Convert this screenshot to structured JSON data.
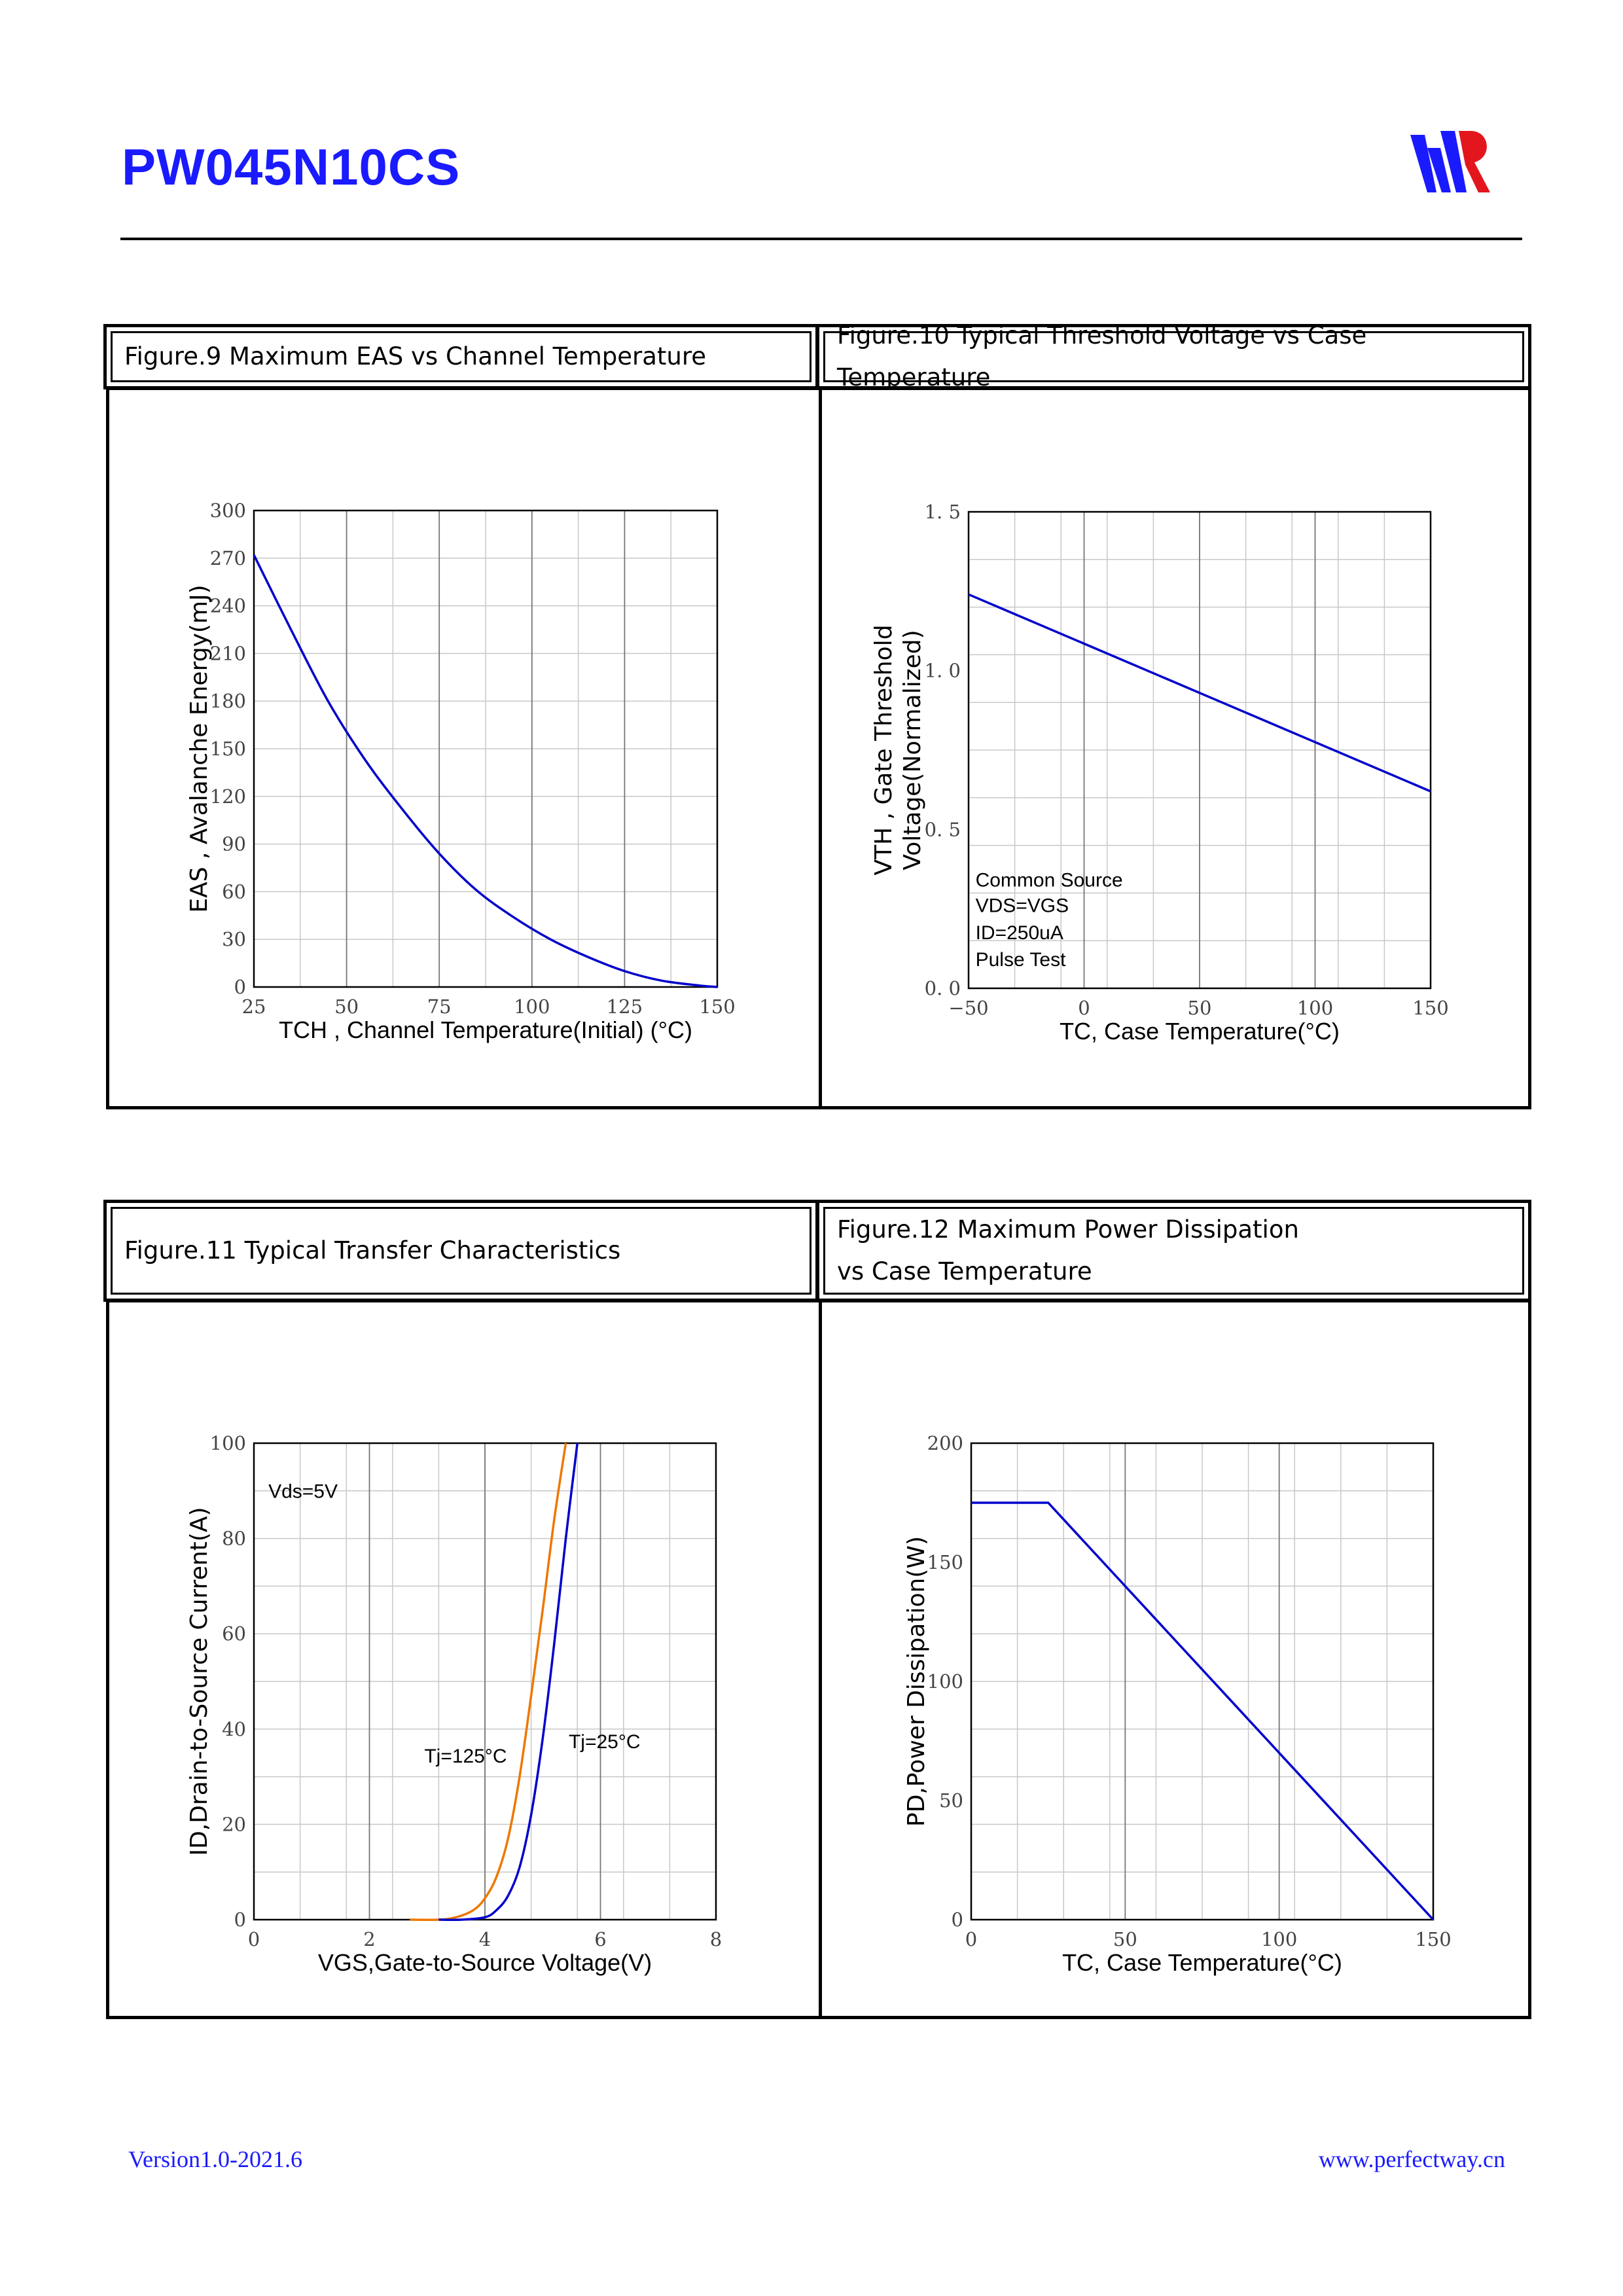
{
  "header": {
    "title": "PW045N10CS"
  },
  "footer": {
    "version": "Version1.0-2021.6",
    "website": "www.perfectway.cn"
  },
  "colors": {
    "blue": "#0000cc",
    "orange": "#ee7700",
    "brand": "#1a1aff"
  },
  "captions": {
    "fig9": "Figure.9 Maximum EAS vs Channel Temperature",
    "fig10": "Figure.10 Typical Threshold Voltage vs Case Temperature",
    "fig11": "Figure.11 Typical Transfer Characteristics",
    "fig12_line1": "Figure.12 Maximum Power Dissipation",
    "fig12_line2": "vs Case Temperature"
  },
  "chart_data": [
    {
      "id": "fig9",
      "type": "line",
      "title": "Figure.9 Maximum EAS vs Channel Temperature",
      "xlabel": "TCH , Channel Temperature(Initial) (°C)",
      "ylabel": "EAS , Avalanche Energy(mJ)",
      "xlim": [
        25,
        150
      ],
      "ylim": [
        0,
        300
      ],
      "xticks": [
        25,
        50,
        75,
        100,
        125,
        150
      ],
      "yticks": [
        0,
        30,
        60,
        90,
        120,
        150,
        180,
        210,
        240,
        270,
        300
      ],
      "series": [
        {
          "name": "EAS",
          "color": "#0000cc",
          "x": [
            25,
            35,
            45,
            55,
            65,
            75,
            85,
            95,
            105,
            115,
            125,
            135,
            145,
            150
          ],
          "y": [
            272,
            225,
            180,
            143,
            112,
            84,
            61,
            44,
            30,
            19,
            10,
            4,
            1,
            0
          ]
        }
      ],
      "annotations": []
    },
    {
      "id": "fig10",
      "type": "line",
      "title": "Figure.10 Typical Threshold Voltage vs Case Temperature",
      "xlabel": "TC, Case Temperature(°C)",
      "ylabel": "VTH , Gate Threshold Voltage(Normalized)",
      "ylabel_lines": [
        "VTH , Gate Threshold",
        "Voltage(Normalized)"
      ],
      "xlim": [
        -50,
        150
      ],
      "ylim": [
        0,
        1.5
      ],
      "xticks": [
        -50,
        0,
        50,
        100,
        150
      ],
      "xtick_labels": [
        "−50",
        "0",
        "50",
        "100",
        "150"
      ],
      "yticks": [
        0,
        0.5,
        1.0,
        1.5
      ],
      "ytick_labels": [
        "0. 0",
        "0. 5",
        "1. 0",
        "1. 5"
      ],
      "series": [
        {
          "name": "VTH",
          "color": "#0000cc",
          "x": [
            -50,
            150
          ],
          "y": [
            1.24,
            0.62
          ]
        }
      ],
      "annotations": [
        {
          "text": "Common Source",
          "x": -47,
          "y": 0.32
        },
        {
          "text": "VDS=VGS",
          "x": -47,
          "y": 0.24
        },
        {
          "text": "ID=250uA",
          "x": -47,
          "y": 0.155
        },
        {
          "text": "Pulse Test",
          "x": -47,
          "y": 0.07
        }
      ]
    },
    {
      "id": "fig11",
      "type": "line",
      "title": "Figure.11 Typical Transfer Characteristics",
      "xlabel": "VGS,Gate-to-Source Voltage(V)",
      "ylabel": "ID,Drain-to-Source Current(A)",
      "xlim": [
        0,
        8
      ],
      "ylim": [
        0,
        100
      ],
      "xticks": [
        0,
        2,
        4,
        6,
        8
      ],
      "yticks": [
        0,
        20,
        40,
        60,
        80,
        100
      ],
      "series": [
        {
          "name": "Tj=125°C",
          "color": "#ee7700",
          "x": [
            2.7,
            3.2,
            3.5,
            3.8,
            4.0,
            4.2,
            4.4,
            4.6,
            4.8,
            5.0,
            5.2,
            5.4
          ],
          "y": [
            0,
            0,
            0.5,
            2,
            4.5,
            9,
            17,
            30,
            47,
            65,
            84,
            100
          ]
        },
        {
          "name": "Tj=25°C",
          "color": "#0000cc",
          "x": [
            3.2,
            3.6,
            4.0,
            4.2,
            4.4,
            4.6,
            4.8,
            5.0,
            5.2,
            5.4,
            5.6
          ],
          "y": [
            0,
            0,
            0.5,
            2,
            5,
            11,
            22,
            38,
            58,
            80,
            100
          ]
        }
      ],
      "annotations": [
        {
          "text": "Vds=5V",
          "x": 0.25,
          "y": 88.5
        },
        {
          "text": "Tj=125°C",
          "x": 2.95,
          "y": 33
        },
        {
          "text": "Tj=25°C",
          "x": 5.45,
          "y": 36
        }
      ]
    },
    {
      "id": "fig12",
      "type": "line",
      "title": "Figure.12 Maximum Power Dissipation vs Case Temperature",
      "xlabel": "TC, Case Temperature(°C)",
      "ylabel": "PD,Power Dissipation(W)",
      "xlim": [
        0,
        150
      ],
      "ylim": [
        0,
        200
      ],
      "xticks": [
        0,
        50,
        100,
        150
      ],
      "yticks": [
        0,
        50,
        100,
        150,
        200
      ],
      "series": [
        {
          "name": "PD",
          "color": "#0000cc",
          "x": [
            0,
            25,
            150
          ],
          "y": [
            175,
            175,
            0
          ]
        }
      ],
      "annotations": []
    }
  ]
}
